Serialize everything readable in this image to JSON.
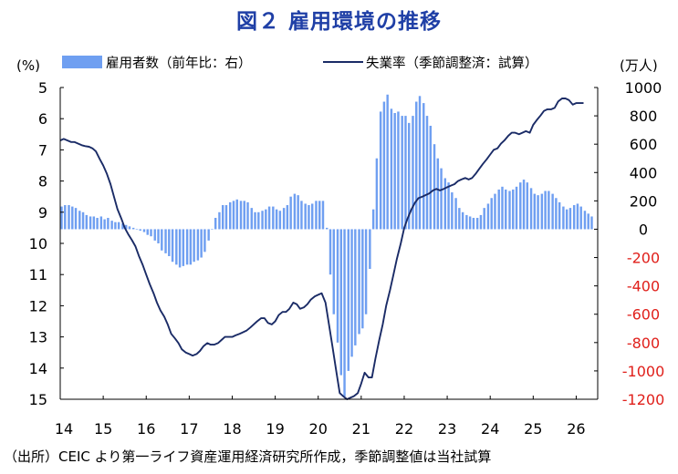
{
  "title": "図２ 雇用環境の推移",
  "source_note": "（出所）CEIC より第一ライフ資産運用経済研究所作成，季節調整値は当社試算",
  "colors": {
    "bar": "#6f9ff1",
    "line": "#1a2b66",
    "title": "#1f3fa6",
    "negative_tick": "#e0201b"
  },
  "chart_data": {
    "type": "bar+line",
    "title": "図２ 雇用環境の推移",
    "left_axis": {
      "unit": "(%)",
      "min": 5,
      "max": 15,
      "inverted": true,
      "ticks": [
        "5",
        "6",
        "7",
        "8",
        "9",
        "10",
        "11",
        "12",
        "13",
        "14",
        "15"
      ]
    },
    "right_axis": {
      "unit": "(万人)",
      "min": -1200,
      "max": 1000,
      "ticks": [
        "1000",
        "800",
        "600",
        "400",
        "200",
        "0",
        "-200",
        "-400",
        "-600",
        "-800",
        "-1000",
        "-1200"
      ]
    },
    "x_ticks": [
      "14",
      "15",
      "16",
      "17",
      "18",
      "19",
      "20",
      "21",
      "22",
      "23",
      "24",
      "25",
      "26"
    ],
    "x_range": [
      2014.0,
      2026.5
    ],
    "legend": {
      "placement": "top",
      "entries": [
        "雇用者数（前年比：右）",
        "失業率（季節調整済：試算）"
      ]
    },
    "grid": false,
    "series": [
      {
        "name": "雇用者数（前年比：右）",
        "type": "bar",
        "axis": "right",
        "points": [
          [
            2014.0,
            160
          ],
          [
            2014.08,
            170
          ],
          [
            2014.17,
            170
          ],
          [
            2014.25,
            160
          ],
          [
            2014.33,
            150
          ],
          [
            2014.42,
            130
          ],
          [
            2014.5,
            120
          ],
          [
            2014.58,
            100
          ],
          [
            2014.67,
            90
          ],
          [
            2014.75,
            90
          ],
          [
            2014.83,
            80
          ],
          [
            2014.92,
            90
          ],
          [
            2015.0,
            70
          ],
          [
            2015.08,
            80
          ],
          [
            2015.17,
            60
          ],
          [
            2015.25,
            50
          ],
          [
            2015.33,
            50
          ],
          [
            2015.42,
            40
          ],
          [
            2015.5,
            30
          ],
          [
            2015.58,
            20
          ],
          [
            2015.67,
            10
          ],
          [
            2015.75,
            0
          ],
          [
            2015.83,
            -10
          ],
          [
            2015.92,
            -20
          ],
          [
            2016.0,
            -40
          ],
          [
            2016.08,
            -50
          ],
          [
            2016.17,
            -80
          ],
          [
            2016.25,
            -100
          ],
          [
            2016.33,
            -150
          ],
          [
            2016.42,
            -170
          ],
          [
            2016.5,
            -190
          ],
          [
            2016.58,
            -230
          ],
          [
            2016.67,
            -250
          ],
          [
            2016.75,
            -270
          ],
          [
            2016.83,
            -260
          ],
          [
            2016.92,
            -250
          ],
          [
            2017.0,
            -250
          ],
          [
            2017.08,
            -230
          ],
          [
            2017.17,
            -220
          ],
          [
            2017.25,
            -200
          ],
          [
            2017.33,
            -160
          ],
          [
            2017.42,
            -80
          ],
          [
            2017.5,
            0
          ],
          [
            2017.58,
            80
          ],
          [
            2017.67,
            120
          ],
          [
            2017.75,
            170
          ],
          [
            2017.83,
            170
          ],
          [
            2017.92,
            190
          ],
          [
            2018.0,
            200
          ],
          [
            2018.08,
            210
          ],
          [
            2018.17,
            200
          ],
          [
            2018.25,
            200
          ],
          [
            2018.33,
            190
          ],
          [
            2018.42,
            150
          ],
          [
            2018.5,
            120
          ],
          [
            2018.58,
            120
          ],
          [
            2018.67,
            130
          ],
          [
            2018.75,
            140
          ],
          [
            2018.83,
            160
          ],
          [
            2018.92,
            160
          ],
          [
            2019.0,
            140
          ],
          [
            2019.08,
            130
          ],
          [
            2019.17,
            150
          ],
          [
            2019.25,
            170
          ],
          [
            2019.33,
            230
          ],
          [
            2019.42,
            250
          ],
          [
            2019.5,
            240
          ],
          [
            2019.58,
            200
          ],
          [
            2019.67,
            180
          ],
          [
            2019.75,
            170
          ],
          [
            2019.83,
            180
          ],
          [
            2019.92,
            200
          ],
          [
            2020.0,
            200
          ],
          [
            2020.08,
            200
          ],
          [
            2020.17,
            10
          ],
          [
            2020.25,
            -320
          ],
          [
            2020.33,
            -600
          ],
          [
            2020.42,
            -800
          ],
          [
            2020.5,
            -1030
          ],
          [
            2020.58,
            -1180
          ],
          [
            2020.67,
            -1000
          ],
          [
            2020.75,
            -900
          ],
          [
            2020.83,
            -820
          ],
          [
            2020.92,
            -740
          ],
          [
            2021.0,
            -700
          ],
          [
            2021.08,
            -600
          ],
          [
            2021.17,
            -280
          ],
          [
            2021.25,
            140
          ],
          [
            2021.33,
            500
          ],
          [
            2021.42,
            830
          ],
          [
            2021.5,
            900
          ],
          [
            2021.58,
            950
          ],
          [
            2021.67,
            850
          ],
          [
            2021.75,
            820
          ],
          [
            2021.83,
            830
          ],
          [
            2021.92,
            800
          ],
          [
            2022.0,
            800
          ],
          [
            2022.08,
            750
          ],
          [
            2022.17,
            800
          ],
          [
            2022.25,
            900
          ],
          [
            2022.33,
            940
          ],
          [
            2022.42,
            890
          ],
          [
            2022.5,
            800
          ],
          [
            2022.58,
            730
          ],
          [
            2022.67,
            600
          ],
          [
            2022.75,
            500
          ],
          [
            2022.83,
            430
          ],
          [
            2022.92,
            360
          ],
          [
            2023.0,
            330
          ],
          [
            2023.08,
            260
          ],
          [
            2023.17,
            220
          ],
          [
            2023.25,
            150
          ],
          [
            2023.33,
            120
          ],
          [
            2023.42,
            100
          ],
          [
            2023.5,
            90
          ],
          [
            2023.58,
            80
          ],
          [
            2023.67,
            80
          ],
          [
            2023.75,
            100
          ],
          [
            2023.83,
            150
          ],
          [
            2023.92,
            180
          ],
          [
            2024.0,
            220
          ],
          [
            2024.08,
            250
          ],
          [
            2024.17,
            280
          ],
          [
            2024.25,
            300
          ],
          [
            2024.33,
            280
          ],
          [
            2024.42,
            270
          ],
          [
            2024.5,
            280
          ],
          [
            2024.58,
            300
          ],
          [
            2024.67,
            330
          ],
          [
            2024.75,
            350
          ],
          [
            2024.83,
            330
          ],
          [
            2024.92,
            290
          ],
          [
            2025.0,
            250
          ],
          [
            2025.08,
            240
          ],
          [
            2025.17,
            250
          ],
          [
            2025.25,
            270
          ],
          [
            2025.33,
            270
          ],
          [
            2025.42,
            250
          ],
          [
            2025.5,
            220
          ],
          [
            2025.58,
            190
          ],
          [
            2025.67,
            160
          ],
          [
            2025.75,
            140
          ],
          [
            2025.83,
            150
          ],
          [
            2025.92,
            170
          ],
          [
            2026.0,
            180
          ],
          [
            2026.08,
            160
          ],
          [
            2026.17,
            130
          ],
          [
            2026.25,
            110
          ],
          [
            2026.33,
            90
          ]
        ]
      },
      {
        "name": "失業率（季節調整済：試算）",
        "type": "line",
        "axis": "left",
        "points": [
          [
            2014.0,
            6.7
          ],
          [
            2014.08,
            6.65
          ],
          [
            2014.17,
            6.7
          ],
          [
            2014.25,
            6.75
          ],
          [
            2014.33,
            6.75
          ],
          [
            2014.42,
            6.8
          ],
          [
            2014.5,
            6.85
          ],
          [
            2014.58,
            6.88
          ],
          [
            2014.67,
            6.9
          ],
          [
            2014.75,
            6.95
          ],
          [
            2014.83,
            7.05
          ],
          [
            2014.92,
            7.3
          ],
          [
            2015.0,
            7.5
          ],
          [
            2015.08,
            7.75
          ],
          [
            2015.17,
            8.1
          ],
          [
            2015.25,
            8.5
          ],
          [
            2015.33,
            8.9
          ],
          [
            2015.42,
            9.2
          ],
          [
            2015.5,
            9.5
          ],
          [
            2015.58,
            9.7
          ],
          [
            2015.67,
            9.9
          ],
          [
            2015.75,
            10.1
          ],
          [
            2015.83,
            10.4
          ],
          [
            2015.92,
            10.7
          ],
          [
            2016.0,
            11.0
          ],
          [
            2016.08,
            11.3
          ],
          [
            2016.17,
            11.6
          ],
          [
            2016.25,
            11.9
          ],
          [
            2016.33,
            12.15
          ],
          [
            2016.42,
            12.35
          ],
          [
            2016.5,
            12.6
          ],
          [
            2016.58,
            12.9
          ],
          [
            2016.67,
            13.05
          ],
          [
            2016.75,
            13.2
          ],
          [
            2016.83,
            13.4
          ],
          [
            2016.92,
            13.5
          ],
          [
            2017.0,
            13.55
          ],
          [
            2017.08,
            13.6
          ],
          [
            2017.17,
            13.55
          ],
          [
            2017.25,
            13.45
          ],
          [
            2017.33,
            13.3
          ],
          [
            2017.42,
            13.2
          ],
          [
            2017.5,
            13.25
          ],
          [
            2017.58,
            13.25
          ],
          [
            2017.67,
            13.2
          ],
          [
            2017.75,
            13.1
          ],
          [
            2017.83,
            13.0
          ],
          [
            2017.92,
            13.0
          ],
          [
            2018.0,
            13.0
          ],
          [
            2018.08,
            12.95
          ],
          [
            2018.17,
            12.9
          ],
          [
            2018.25,
            12.85
          ],
          [
            2018.33,
            12.8
          ],
          [
            2018.42,
            12.7
          ],
          [
            2018.5,
            12.6
          ],
          [
            2018.58,
            12.5
          ],
          [
            2018.67,
            12.4
          ],
          [
            2018.75,
            12.4
          ],
          [
            2018.83,
            12.55
          ],
          [
            2018.92,
            12.6
          ],
          [
            2019.0,
            12.5
          ],
          [
            2019.08,
            12.3
          ],
          [
            2019.17,
            12.2
          ],
          [
            2019.25,
            12.2
          ],
          [
            2019.33,
            12.1
          ],
          [
            2019.42,
            11.9
          ],
          [
            2019.5,
            11.95
          ],
          [
            2019.58,
            12.1
          ],
          [
            2019.67,
            12.05
          ],
          [
            2019.75,
            11.95
          ],
          [
            2019.83,
            11.8
          ],
          [
            2019.92,
            11.7
          ],
          [
            2020.0,
            11.65
          ],
          [
            2020.08,
            11.6
          ],
          [
            2020.17,
            11.9
          ],
          [
            2020.25,
            12.6
          ],
          [
            2020.33,
            13.3
          ],
          [
            2020.42,
            14.1
          ],
          [
            2020.5,
            14.8
          ],
          [
            2020.58,
            14.9
          ],
          [
            2020.67,
            15.0
          ],
          [
            2020.75,
            14.95
          ],
          [
            2020.83,
            14.9
          ],
          [
            2020.92,
            14.8
          ],
          [
            2021.0,
            14.5
          ],
          [
            2021.08,
            14.15
          ],
          [
            2021.17,
            14.3
          ],
          [
            2021.25,
            14.3
          ],
          [
            2021.33,
            13.7
          ],
          [
            2021.42,
            13.1
          ],
          [
            2021.5,
            12.6
          ],
          [
            2021.58,
            12.0
          ],
          [
            2021.67,
            11.5
          ],
          [
            2021.75,
            11.0
          ],
          [
            2021.83,
            10.5
          ],
          [
            2021.92,
            10.0
          ],
          [
            2022.0,
            9.5
          ],
          [
            2022.08,
            9.2
          ],
          [
            2022.17,
            8.9
          ],
          [
            2022.25,
            8.7
          ],
          [
            2022.33,
            8.55
          ],
          [
            2022.42,
            8.5
          ],
          [
            2022.5,
            8.45
          ],
          [
            2022.58,
            8.4
          ],
          [
            2022.67,
            8.3
          ],
          [
            2022.75,
            8.25
          ],
          [
            2022.83,
            8.3
          ],
          [
            2022.92,
            8.25
          ],
          [
            2023.0,
            8.2
          ],
          [
            2023.08,
            8.15
          ],
          [
            2023.17,
            8.1
          ],
          [
            2023.25,
            8.0
          ],
          [
            2023.33,
            7.95
          ],
          [
            2023.42,
            7.9
          ],
          [
            2023.5,
            7.95
          ],
          [
            2023.58,
            7.9
          ],
          [
            2023.67,
            7.75
          ],
          [
            2023.75,
            7.6
          ],
          [
            2023.83,
            7.45
          ],
          [
            2023.92,
            7.3
          ],
          [
            2024.0,
            7.15
          ],
          [
            2024.08,
            7.0
          ],
          [
            2024.17,
            6.95
          ],
          [
            2024.25,
            6.8
          ],
          [
            2024.33,
            6.7
          ],
          [
            2024.42,
            6.55
          ],
          [
            2024.5,
            6.45
          ],
          [
            2024.58,
            6.45
          ],
          [
            2024.67,
            6.5
          ],
          [
            2024.75,
            6.45
          ],
          [
            2024.83,
            6.4
          ],
          [
            2024.92,
            6.45
          ],
          [
            2025.0,
            6.2
          ],
          [
            2025.08,
            6.05
          ],
          [
            2025.17,
            5.9
          ],
          [
            2025.25,
            5.75
          ],
          [
            2025.33,
            5.7
          ],
          [
            2025.42,
            5.7
          ],
          [
            2025.5,
            5.65
          ],
          [
            2025.58,
            5.45
          ],
          [
            2025.67,
            5.35
          ],
          [
            2025.75,
            5.35
          ],
          [
            2025.83,
            5.4
          ],
          [
            2025.92,
            5.55
          ],
          [
            2026.0,
            5.5
          ],
          [
            2026.08,
            5.5
          ],
          [
            2026.17,
            5.5
          ]
        ]
      }
    ]
  }
}
